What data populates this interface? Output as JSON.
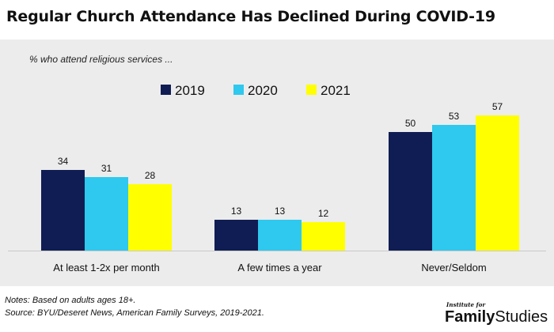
{
  "chart_data": {
    "type": "bar",
    "title": "Regular Church Attendance Has Declined During COVID-19",
    "subtitle": "% who attend religious services ...",
    "categories": [
      "At least 1-2x per month",
      "A few times a year",
      "Never/Seldom"
    ],
    "series": [
      {
        "name": "2019",
        "values": [
          34,
          13,
          50
        ],
        "color": "#101d54"
      },
      {
        "name": "2020",
        "values": [
          31,
          13,
          53
        ],
        "color": "#2fc8ee"
      },
      {
        "name": "2021",
        "values": [
          28,
          12,
          57
        ],
        "color": "#ffff00"
      }
    ],
    "xlabel": "",
    "ylabel": "",
    "ylim": [
      0,
      70
    ],
    "grid": false,
    "legend": "top-center",
    "data_labels": true
  },
  "notes": [
    "Notes: Based on adults ages 18+.",
    "Source: BYU/Deseret News, American Family Surveys, 2019-2021."
  ],
  "brand": {
    "prefix": "Institute for",
    "main_first": "Family",
    "main_second": "Studies"
  }
}
